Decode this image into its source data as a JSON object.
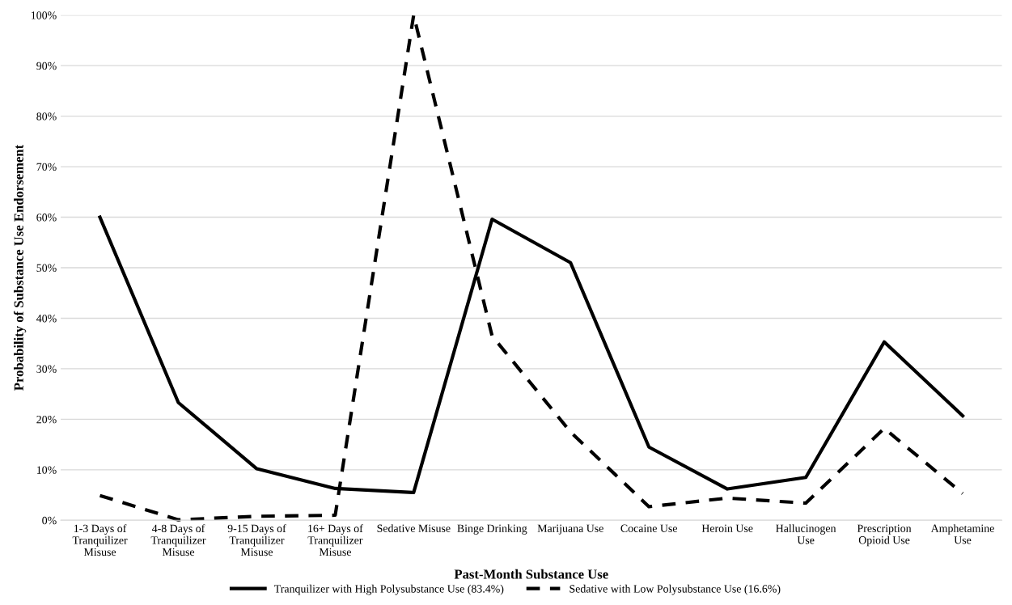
{
  "chart_data": {
    "type": "line",
    "xlabel": "Past-Month Substance Use",
    "ylabel": "Probability of Substance Use Endorsement",
    "categories": [
      "1-3 Days of\nTranquilizer\nMisuse",
      "4-8 Days of\nTranquilizer\nMisuse",
      "9-15 Days of\nTranquilizer\nMisuse",
      "16+ Days of\nTranquilizer\nMisuse",
      "Sedative Misuse",
      "Binge Drinking",
      "Marijuana Use",
      "Cocaine Use",
      "Heroin Use",
      "Hallucinogen\nUse",
      "Prescription\nOpioid Use",
      "Amphetamine\nUse"
    ],
    "series": [
      {
        "name": "Tranquilizer with High Polysubstance Use (83.4%)",
        "color": "#000000",
        "line_style": "solid",
        "values": [
          60,
          23.3,
          10.2,
          6.3,
          5.5,
          59.6,
          51,
          14.5,
          6.2,
          8.5,
          35.3,
          20.7
        ]
      },
      {
        "name": "Sedative with Low Polysubstance Use (16.6%)",
        "color": "#000000",
        "line_style": "dashed",
        "values": [
          4.9,
          0.1,
          0.8,
          1.0,
          100,
          36.5,
          17.5,
          2.7,
          4.4,
          3.4,
          18.2,
          5.3
        ]
      }
    ],
    "ylim": [
      0,
      100
    ],
    "yticks": [
      {
        "value": 0,
        "label": "0%"
      },
      {
        "value": 10,
        "label": "10%"
      },
      {
        "value": 20,
        "label": "20%"
      },
      {
        "value": 30,
        "label": "30%"
      },
      {
        "value": 40,
        "label": "40%"
      },
      {
        "value": 50,
        "label": "50%"
      },
      {
        "value": 60,
        "label": "60%"
      },
      {
        "value": 70,
        "label": "70%"
      },
      {
        "value": 80,
        "label": "80%"
      },
      {
        "value": 90,
        "label": "90%"
      },
      {
        "value": 100,
        "label": "100%"
      }
    ],
    "grid": "y",
    "legend": "bottom",
    "marker": "none"
  }
}
